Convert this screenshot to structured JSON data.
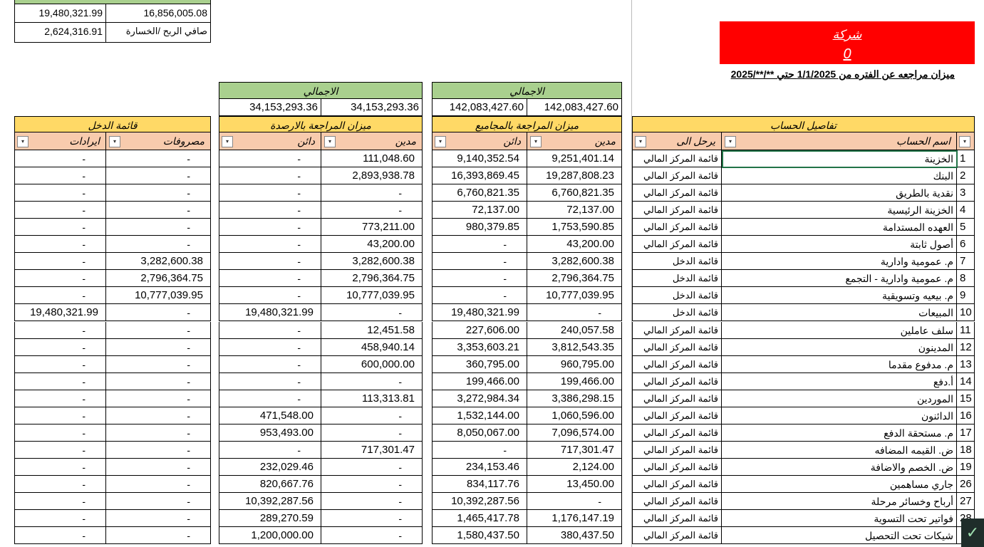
{
  "summary": {
    "income_totals": [
      "19,480,321.99",
      "16,856,005.08"
    ],
    "net_label": "صافي الربح /الخسارة",
    "net_value": "2,624,316.91"
  },
  "company": {
    "name": "شركة",
    "value": "0"
  },
  "report_title": "ميزان مراجعه عن الفتره من 1/1/2025 حتي **/**/2025",
  "totals": {
    "balances_label": "الاجمالي",
    "balances": [
      "34,153,293.36",
      "34,153,293.36"
    ],
    "sums_label": "الاجمالي",
    "sums": [
      "142,083,427.60",
      "142,083,427.60"
    ]
  },
  "sections": {
    "income": "قائمة الدخل",
    "balances": "ميزان المراجعة بالارصدة",
    "sums": "ميزان المراجعة بالمجاميع",
    "details": "تفاصيل الحساب"
  },
  "columns": [
    "اسم الحساب",
    "يرحل الى",
    "مدين",
    "دائن",
    "مدين",
    "دائن",
    "مصروفات",
    "ايرادات"
  ],
  "rows": [
    [
      "1",
      "الخزينة",
      "قائمة المركز المالي",
      "9,251,401.14",
      "9,140,352.54",
      "111,048.60",
      "-",
      "-",
      "-"
    ],
    [
      "2",
      "البنك",
      "قائمة المركز المالي",
      "19,287,808.23",
      "16,393,869.45",
      "2,893,938.78",
      "-",
      "-",
      "-"
    ],
    [
      "3",
      "نقدية بالطريق",
      "قائمة المركز المالي",
      "6,760,821.35",
      "6,760,821.35",
      "-",
      "-",
      "-",
      "-"
    ],
    [
      "4",
      "الخزينة الرئيسية",
      "قائمة المركز المالي",
      "72,137.00",
      "72,137.00",
      "-",
      "-",
      "-",
      "-"
    ],
    [
      "5",
      "العهده المستدامة",
      "قائمة المركز المالي",
      "1,753,590.85",
      "980,379.85",
      "773,211.00",
      "-",
      "-",
      "-"
    ],
    [
      "6",
      "أصول ثابتة",
      "قائمة المركز المالي",
      "43,200.00",
      "-",
      "43,200.00",
      "-",
      "-",
      "-"
    ],
    [
      "7",
      "م. عمومية وادارية",
      "قائمة الدخل",
      "3,282,600.38",
      "-",
      "3,282,600.38",
      "-",
      "3,282,600.38",
      "-"
    ],
    [
      "8",
      "م. عمومية وادارية - التجمع",
      "قائمة الدخل",
      "2,796,364.75",
      "-",
      "2,796,364.75",
      "-",
      "2,796,364.75",
      "-"
    ],
    [
      "9",
      "م. بيعيه وتسويقية",
      "قائمة الدخل",
      "10,777,039.95",
      "-",
      "10,777,039.95",
      "-",
      "10,777,039.95",
      "-"
    ],
    [
      "10",
      "المبيعات",
      "قائمة الدخل",
      "-",
      "19,480,321.99",
      "-",
      "19,480,321.99",
      "-",
      "19,480,321.99"
    ],
    [
      "11",
      "سلف عاملين",
      "قائمة المركز المالي",
      "240,057.58",
      "227,606.00",
      "12,451.58",
      "-",
      "-",
      "-"
    ],
    [
      "12",
      "المدينون",
      "قائمة المركز المالي",
      "3,812,543.35",
      "3,353,603.21",
      "458,940.14",
      "-",
      "-",
      "-"
    ],
    [
      "13",
      "م. مدفوع مقدما",
      "قائمة المركز المالي",
      "960,795.00",
      "360,795.00",
      "600,000.00",
      "-",
      "-",
      "-"
    ],
    [
      "14",
      "أ.دفع",
      "قائمة المركز المالي",
      "199,466.00",
      "199,466.00",
      "-",
      "-",
      "-",
      "-"
    ],
    [
      "15",
      "الموردين",
      "قائمة المركز المالي",
      "3,386,298.15",
      "3,272,984.34",
      "113,313.81",
      "-",
      "-",
      "-"
    ],
    [
      "16",
      "الدائنون",
      "قائمة المركز المالي",
      "1,060,596.00",
      "1,532,144.00",
      "-",
      "471,548.00",
      "-",
      "-"
    ],
    [
      "17",
      "م. مستحقة الدفع",
      "قائمة المركز المالي",
      "7,096,574.00",
      "8,050,067.00",
      "-",
      "953,493.00",
      "-",
      "-"
    ],
    [
      "18",
      "ض. القيمه المضافه",
      "قائمة المركز المالي",
      "717,301.47",
      "-",
      "717,301.47",
      "-",
      "-",
      "-"
    ],
    [
      "19",
      "ض. الخصم والاضافة",
      "قائمة المركز المالي",
      "2,124.00",
      "234,153.46",
      "-",
      "232,029.46",
      "-",
      "-"
    ],
    [
      "26",
      "جاري مساهمين",
      "قائمة المركز المالي",
      "13,450.00",
      "834,117.76",
      "-",
      "820,667.76",
      "-",
      "-"
    ],
    [
      "27",
      "أرباح وخسائر مرحلة",
      "قائمة المركز المالي",
      "-",
      "10,392,287.56",
      "-",
      "10,392,287.56",
      "-",
      "-"
    ],
    [
      "28",
      "فواتير تحت التسوية",
      "قائمة المركز المالي",
      "1,176,147.19",
      "1,465,417.78",
      "-",
      "289,270.59",
      "-",
      "-"
    ],
    [
      null,
      "شيكات تحت التحصيل",
      "قائمة المركز المالي",
      "380,437.50",
      "1,580,437.50",
      "-",
      "1,200,000.00",
      "-",
      "-"
    ]
  ]
}
